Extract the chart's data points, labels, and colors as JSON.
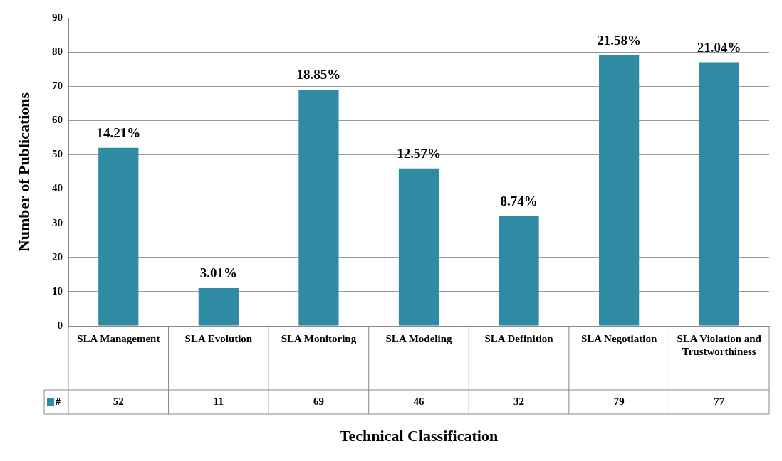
{
  "chart_data": {
    "type": "bar",
    "xlabel": "Technical Classification",
    "ylabel": "Number of Publications",
    "categories": [
      "SLA Management",
      "SLA Evolution",
      "SLA Monitoring",
      "SLA Modeling",
      "SLA Definition",
      "SLA Negotiation",
      "SLA Violation and Trustworthiness"
    ],
    "series": [
      {
        "name": "#",
        "color": "#2f8aa3",
        "values": [
          52,
          11,
          69,
          46,
          32,
          79,
          77
        ]
      }
    ],
    "annotations": [
      {
        "text": "14.21%",
        "x": "SLA Management",
        "y": 52
      },
      {
        "text": "3.01%",
        "x": "SLA Evolution",
        "y": 11
      },
      {
        "text": "18.85%",
        "x": "SLA Monitoring",
        "y": 69
      },
      {
        "text": "12.57%",
        "x": "SLA Modeling",
        "y": 46
      },
      {
        "text": "8.74%",
        "x": "SLA Definition",
        "y": 32
      },
      {
        "text": "21.58%",
        "x": "SLA Negotiation",
        "y": 79
      },
      {
        "text": "21.04%",
        "x": "SLA Violation and Trustworthiness",
        "y": 77
      }
    ],
    "ylim": [
      0,
      90
    ],
    "yticks": [
      0,
      10,
      20,
      30,
      40,
      50,
      60,
      70,
      80,
      90
    ],
    "grid": "y",
    "legend": "bottom left",
    "data_labels": true
  }
}
